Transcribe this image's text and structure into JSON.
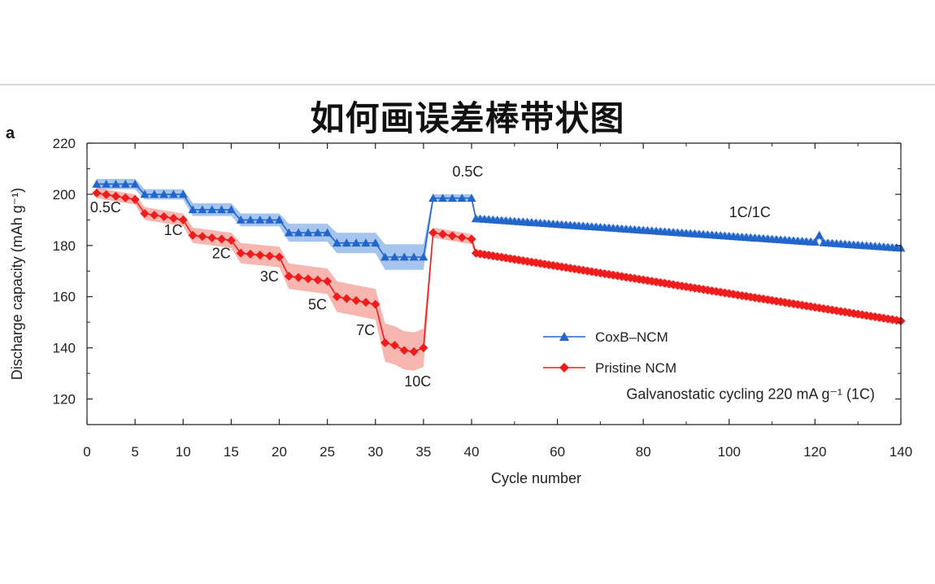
{
  "page": {
    "title": "如何画误差棒带状图",
    "panel_label": "a"
  },
  "colors": {
    "series_blue": "#2266cc",
    "band_blue": "#5b96e0",
    "series_red": "#ee1c1c",
    "band_red": "#f07a70",
    "axis": "#222222"
  },
  "chart_data": {
    "type": "line",
    "xlabel": "Cycle number",
    "ylabel": "Discharge capacity (mAh g⁻¹)",
    "xlim": [
      0,
      140
    ],
    "ylim": [
      110,
      220
    ],
    "x_ticks_major": [
      0,
      5,
      10,
      15,
      20,
      25,
      30,
      35,
      40,
      60,
      80,
      100,
      120,
      140
    ],
    "y_ticks_major": [
      120,
      140,
      160,
      180,
      200,
      220
    ],
    "grid": false,
    "legend_position": "lower-right",
    "annotations": [
      {
        "text": "0.5C",
        "cycle": 1,
        "capacity": 193
      },
      {
        "text": "1C",
        "cycle": 8,
        "capacity": 184
      },
      {
        "text": "2C",
        "cycle": 13,
        "capacity": 175
      },
      {
        "text": "3C",
        "cycle": 18,
        "capacity": 166
      },
      {
        "text": "5C",
        "cycle": 23,
        "capacity": 155
      },
      {
        "text": "7C",
        "cycle": 28,
        "capacity": 145
      },
      {
        "text": "10C",
        "cycle": 33,
        "capacity": 125
      },
      {
        "text": "0.5C",
        "cycle": 38,
        "capacity": 207
      },
      {
        "text": "1C/1C",
        "cycle": 100,
        "capacity": 191
      },
      {
        "text": "Galvanostatic cycling 220 mA g⁻¹ (1C)",
        "cycle": 105,
        "capacity": 120
      }
    ],
    "series": [
      {
        "name": "CoxB–NCM",
        "marker": "triangle",
        "rate_steps": [
          {
            "start": 1,
            "end": 5,
            "mean": 204,
            "band": 2
          },
          {
            "start": 6,
            "end": 10,
            "mean": 200,
            "band": 2
          },
          {
            "start": 11,
            "end": 15,
            "mean": 194,
            "band": 2.5
          },
          {
            "start": 16,
            "end": 20,
            "mean": 190,
            "band": 2.5
          },
          {
            "start": 21,
            "end": 25,
            "mean": 185,
            "band": 3.5
          },
          {
            "start": 26,
            "end": 30,
            "mean": 181,
            "band": 4
          },
          {
            "start": 31,
            "end": 35,
            "mean": 175.5,
            "band": 5
          },
          {
            "start": 36,
            "end": 40,
            "mean": 198.5,
            "band": 1.5
          }
        ],
        "long_cycle": {
          "start": 41,
          "end": 140,
          "start_value": 190.5,
          "end_value": 179,
          "band": 1.2,
          "spike_cycle": 121,
          "spike_value": 184
        }
      },
      {
        "name": "Pristine NCM",
        "marker": "diamond",
        "rate_steps": [
          {
            "start": 1,
            "end": 5,
            "start_value": 200.5,
            "end_value": 198,
            "band": 2
          },
          {
            "start": 6,
            "end": 10,
            "start_value": 192.5,
            "end_value": 190,
            "band": 2.5
          },
          {
            "start": 11,
            "end": 15,
            "start_value": 184,
            "end_value": 182,
            "band": 3
          },
          {
            "start": 16,
            "end": 20,
            "start_value": 177,
            "end_value": 175.5,
            "band": 4
          },
          {
            "start": 21,
            "end": 25,
            "start_value": 168,
            "end_value": 166,
            "band": 5
          },
          {
            "start": 26,
            "end": 30,
            "start_value": 160,
            "end_value": 157,
            "band": 6
          },
          {
            "start": 31,
            "end": 35,
            "values": [
              142,
              141,
              139,
              138.5,
              140
            ],
            "band": 7.5
          },
          {
            "start": 36,
            "end": 40,
            "start_value": 185,
            "end_value": 182.5,
            "band": 2
          }
        ],
        "long_cycle": {
          "start": 41,
          "end": 140,
          "start_value": 177,
          "end_value": 150.5,
          "band": 1.5
        }
      }
    ]
  }
}
